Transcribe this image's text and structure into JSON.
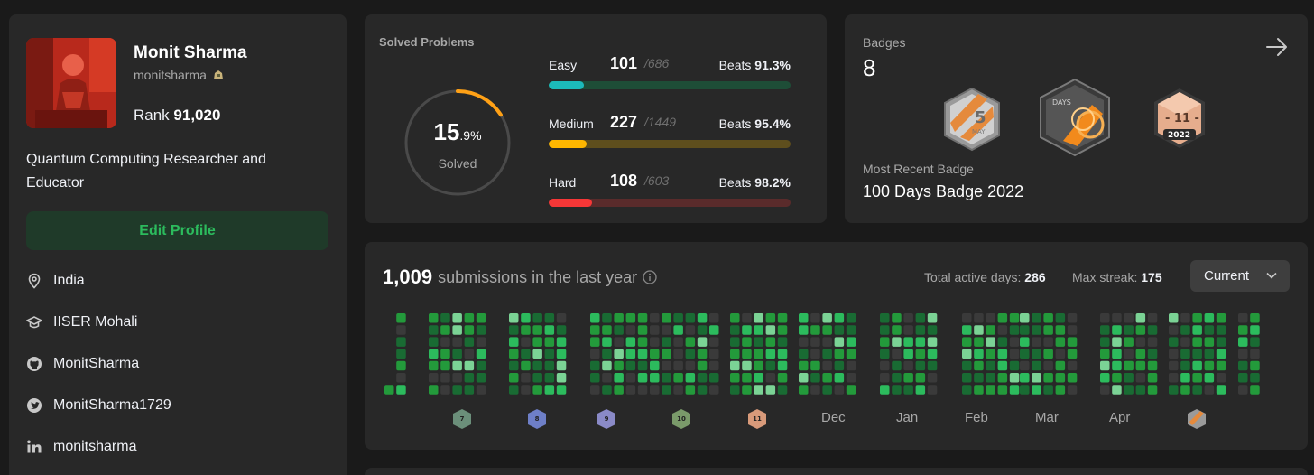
{
  "profile": {
    "name": "Monit Sharma",
    "username": "monitsharma",
    "rank_label": "Rank",
    "rank_value": "91,020",
    "bio": "Quantum Computing Researcher and Educator",
    "edit_label": "Edit Profile",
    "location": "India",
    "school": "IISER Mohali",
    "github": "MonitSharma",
    "twitter": "MonitSharma1729",
    "linkedin": "monitsharma"
  },
  "solved": {
    "title": "Solved Problems",
    "percent_main": "15",
    "percent_small": ".9%",
    "percent_value": 15.9,
    "sub": "Solved",
    "rows": [
      {
        "name": "Easy",
        "count": "101",
        "total": "/686",
        "beats_label": "Beats",
        "beats": "91.3%",
        "fill": 0.147,
        "color": "#1cbaba",
        "track": "#1e4d37"
      },
      {
        "name": "Medium",
        "count": "227",
        "total": "/1449",
        "beats_label": "Beats",
        "beats": "95.4%",
        "fill": 0.157,
        "color": "#ffb700",
        "track": "#5e4e1d"
      },
      {
        "name": "Hard",
        "count": "108",
        "total": "/603",
        "beats_label": "Beats",
        "beats": "98.2%",
        "fill": 0.179,
        "color": "#f63737",
        "track": "#5a2b2b"
      }
    ]
  },
  "badges": {
    "title": "Badges",
    "count": "8",
    "recent_label": "Most Recent Badge",
    "recent_value": "100 Days Badge 2022",
    "items": [
      {
        "icon": "may-badge-icon",
        "text": "5",
        "sub": "MAY"
      },
      {
        "icon": "100-days-badge-icon",
        "text": "DAYS"
      },
      {
        "icon": "november-2022-badge-icon",
        "text": "- 11 -",
        "sub": "2022"
      }
    ]
  },
  "activity": {
    "count": "1,009",
    "suffix": "submissions in the last year",
    "active_label": "Total active days:",
    "active_value": "286",
    "streak_label": "Max streak:",
    "streak_value": "175",
    "dropdown": "Current",
    "months": [
      "Dec",
      "Jan",
      "Feb",
      "Mar",
      "Apr"
    ],
    "month_badges": [
      "7",
      "8",
      "9",
      "10",
      "11"
    ],
    "colors": {
      "empty": "#3a3a3a",
      "l1": "#196b33",
      "l2": "#239a3b",
      "l3": "#2cbb5d",
      "l4": "#7bd395"
    }
  }
}
